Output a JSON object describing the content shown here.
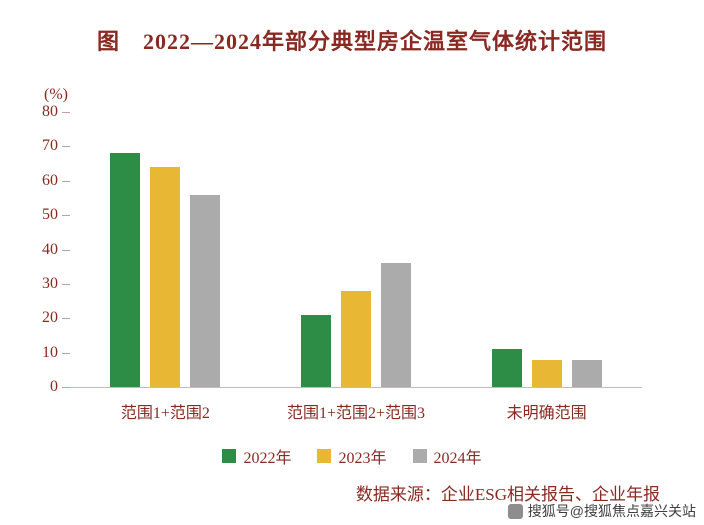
{
  "title": "图　2022—2024年部分典型房企温室气体统计范围",
  "source": "数据来源：企业ESG相关报告、企业年报",
  "watermark": "搜狐号@搜狐焦点嘉兴关站",
  "colors": {
    "text": "#8a2822",
    "series_2022": "#2d8c46",
    "series_2023": "#e8b733",
    "series_2024": "#ababab"
  },
  "chart_data": {
    "type": "bar",
    "title": "2022—2024年部分典型房企温室气体统计范围",
    "unit_label": "(%)",
    "categories": [
      "范围1+范围2",
      "范围1+范围2+范围3",
      "未明确范围"
    ],
    "series": [
      {
        "name": "2022年",
        "color": "#2d8c46",
        "values": [
          68,
          21,
          11
        ]
      },
      {
        "name": "2023年",
        "color": "#e8b733",
        "values": [
          64,
          28,
          8
        ]
      },
      {
        "name": "2024年",
        "color": "#ababab",
        "values": [
          56,
          36,
          8
        ]
      }
    ],
    "xlabel": "",
    "ylabel": "(%)",
    "ylim": [
      0,
      80
    ],
    "yticks": [
      0,
      10,
      20,
      30,
      40,
      50,
      60,
      70,
      80
    ],
    "grid": false,
    "legend_position": "bottom"
  }
}
